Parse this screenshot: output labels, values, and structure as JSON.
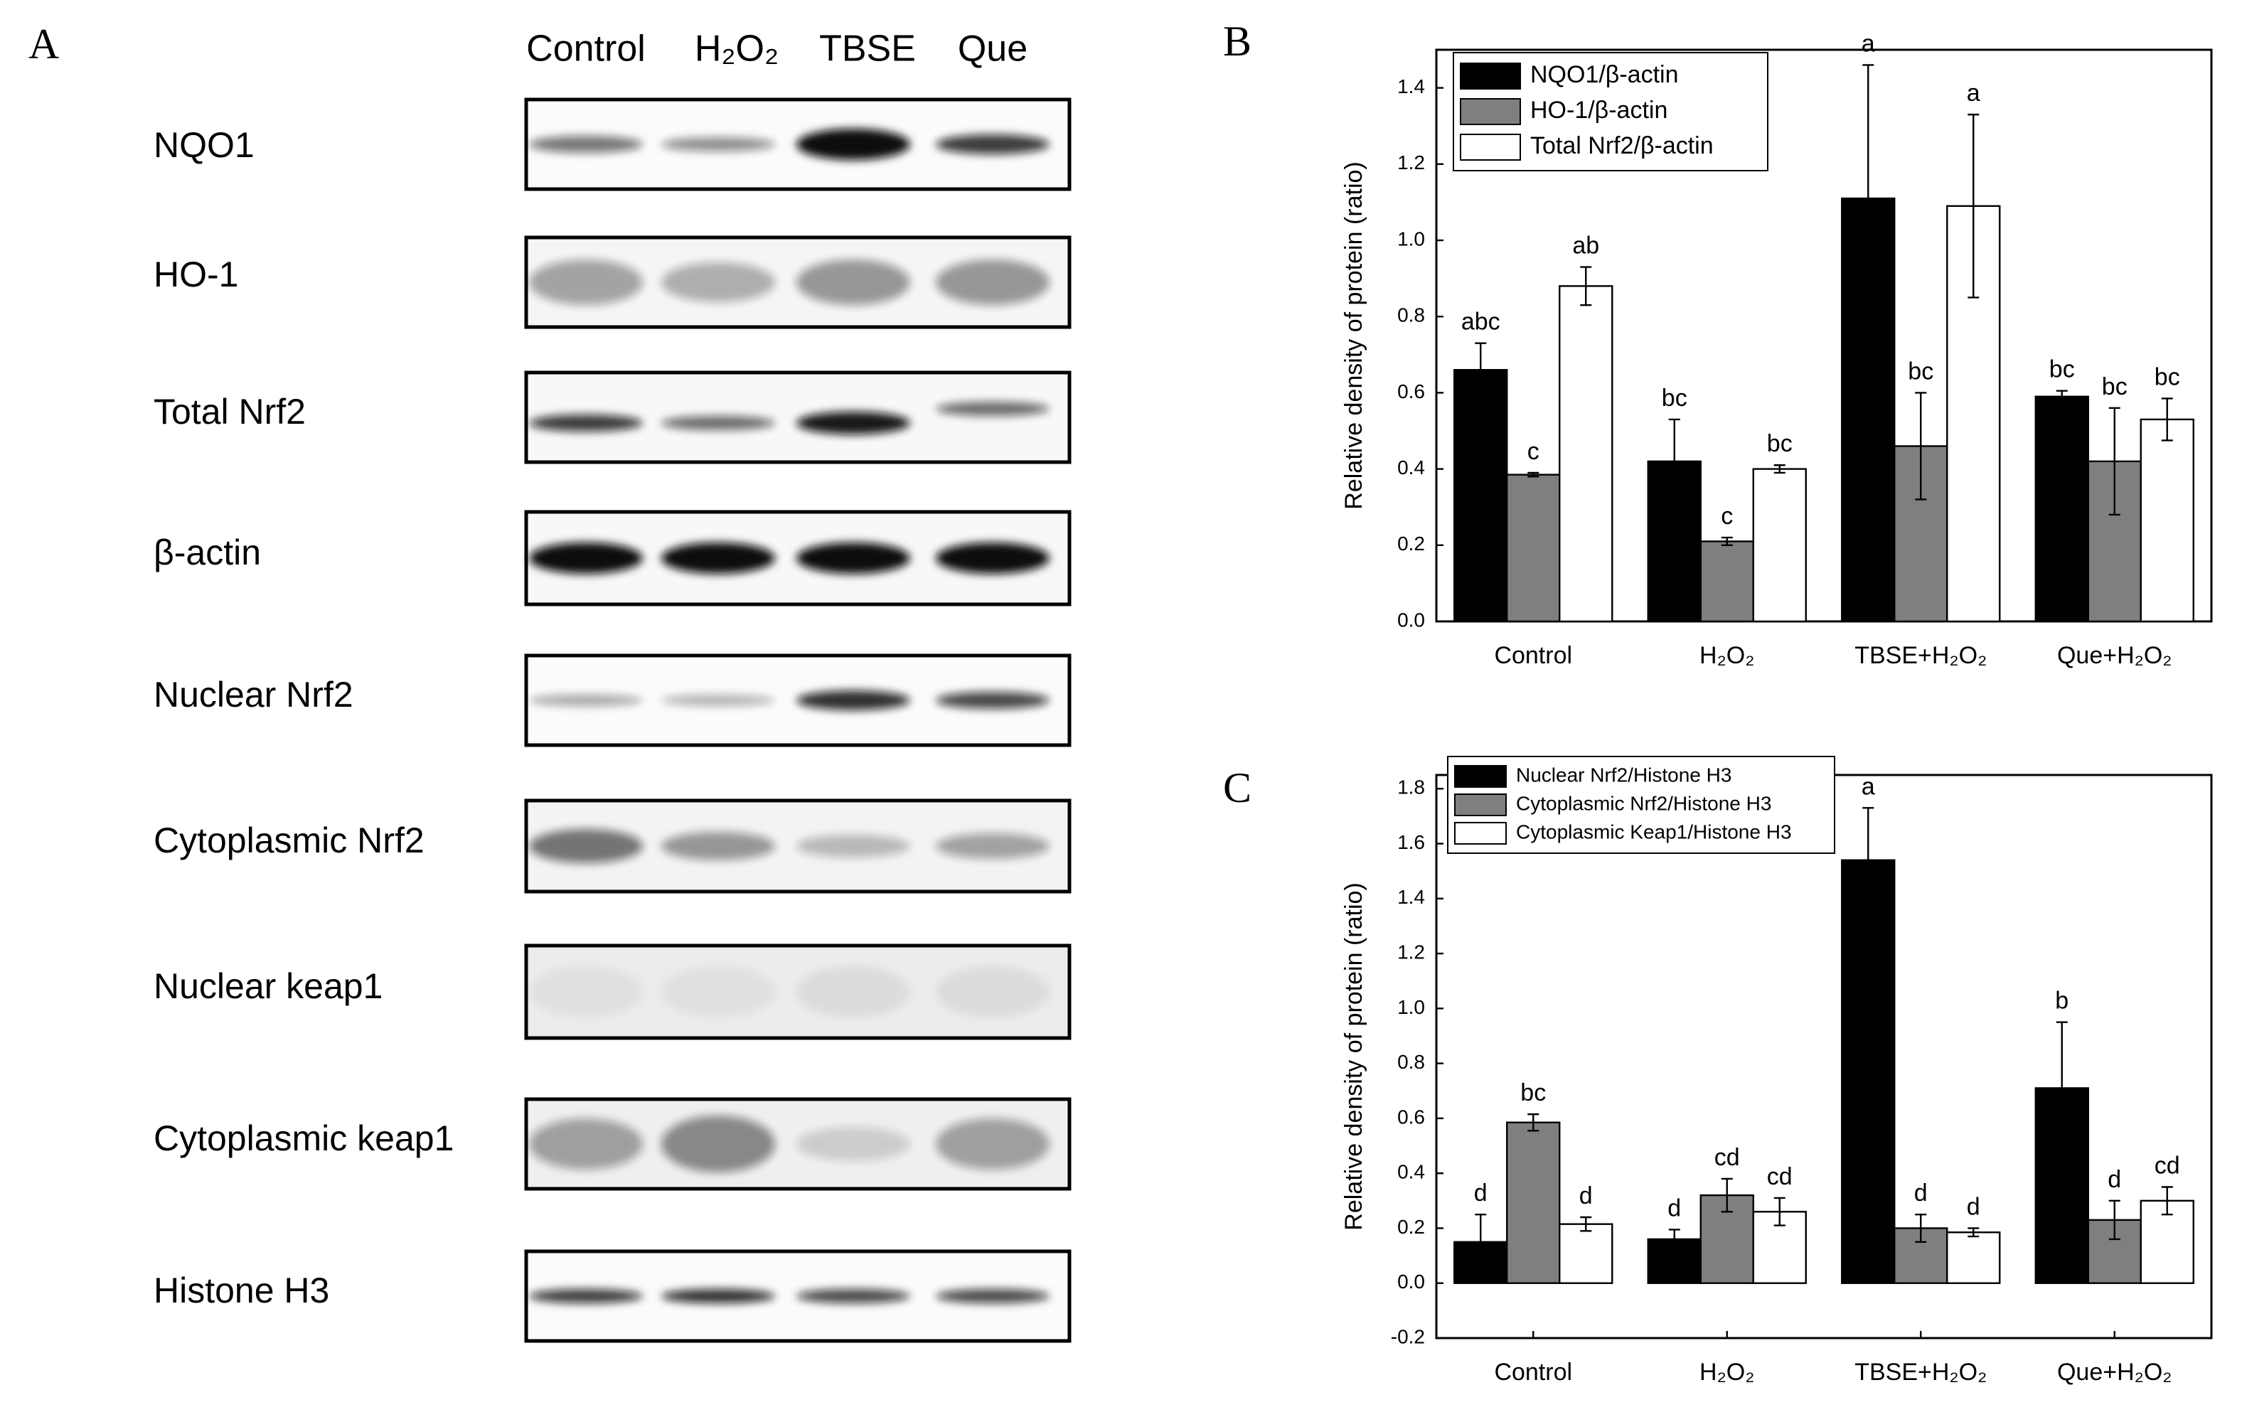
{
  "blot": {
    "panel": "A",
    "lanes": [
      "Control",
      "H₂O₂",
      "TBSE",
      "Que"
    ],
    "rows": [
      "NQO1",
      "HO-1",
      "Total Nrf2",
      "β-actin",
      "Nuclear Nrf2",
      "Cytoplasmic Nrf2",
      "Nuclear keap1",
      "Cytoplasmic keap1",
      "Histone H3"
    ]
  },
  "chart_data": [
    {
      "type": "bar",
      "panel": "B",
      "y_label": "Relative density of protein (ratio)",
      "categories": [
        "Control",
        "H₂O₂",
        "TBSE+H₂O₂",
        "Que+H₂O₂"
      ],
      "ylim": [
        0,
        1.5
      ],
      "yticks": [
        {
          "value": 0,
          "label": "0.0"
        },
        0.2,
        0.4,
        0.6,
        0.8,
        {
          "value": 1,
          "label": "1.0"
        },
        1.2,
        1.4
      ],
      "series": [
        {
          "name": "NQO1/β-actin",
          "color": "#000000",
          "values": [
            0.66,
            0.42,
            1.11,
            0.59
          ],
          "errors": [
            0.07,
            0.11,
            0.35,
            0.015
          ],
          "annotations": [
            "abc",
            "bc",
            "a",
            "bc"
          ]
        },
        {
          "name": "HO-1/β-actin",
          "color": "#7f7f7f",
          "values": [
            0.385,
            0.21,
            0.46,
            0.42
          ],
          "errors": [
            0.005,
            0.01,
            0.14,
            0.14
          ],
          "annotations": [
            "c",
            "c",
            "bc",
            "bc"
          ]
        },
        {
          "name": "Total Nrf2/β-actin",
          "color": "#ffffff",
          "values": [
            0.88,
            0.4,
            1.09,
            0.53
          ],
          "errors": [
            0.05,
            0.01,
            0.24,
            0.055
          ],
          "annotations": [
            "ab",
            "bc",
            "a",
            "bc"
          ]
        }
      ]
    },
    {
      "type": "bar",
      "panel": "C",
      "y_label": "Relative density of protein (ratio)",
      "categories": [
        "Control",
        "H₂O₂",
        "TBSE+H₂O₂",
        "Que+H₂O₂"
      ],
      "ylim": [
        -0.2,
        1.85
      ],
      "yticks": [
        -0.2,
        {
          "value": 0,
          "label": "0.0"
        },
        0.2,
        0.4,
        0.6,
        0.8,
        {
          "value": 1,
          "label": "1.0"
        },
        1.2,
        1.4,
        1.6,
        1.8
      ],
      "series": [
        {
          "name": "Nuclear Nrf2/Histone H3",
          "color": "#000000",
          "values": [
            0.15,
            0.16,
            1.54,
            0.71
          ],
          "errors": [
            0.1,
            0.035,
            0.19,
            0.24
          ],
          "annotations": [
            "d",
            "d",
            "a",
            "b"
          ]
        },
        {
          "name": "Cytoplasmic Nrf2/Histone H3",
          "color": "#7f7f7f",
          "values": [
            0.585,
            0.32,
            0.2,
            0.23
          ],
          "errors": [
            0.03,
            0.06,
            0.05,
            0.07
          ],
          "annotations": [
            "bc",
            "cd",
            "d",
            "d"
          ]
        },
        {
          "name": "Cytoplasmic Keap1/Histone H3",
          "color": "#ffffff",
          "values": [
            0.215,
            0.26,
            0.185,
            0.3
          ],
          "errors": [
            0.025,
            0.05,
            0.015,
            0.05
          ],
          "annotations": [
            "d",
            "cd",
            "d",
            "cd"
          ]
        }
      ]
    }
  ]
}
